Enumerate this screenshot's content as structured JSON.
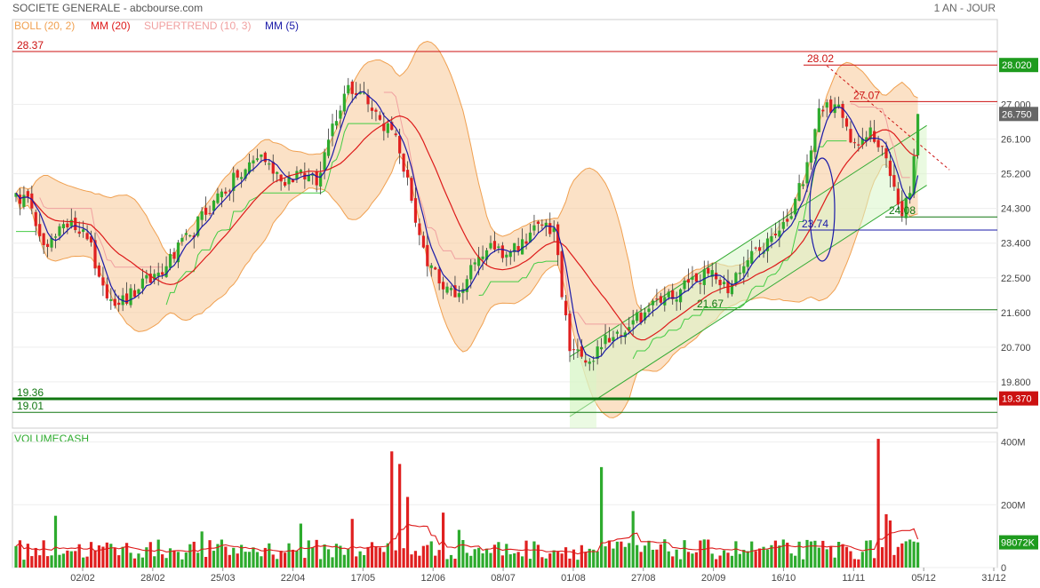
{
  "header": {
    "title": "SOCIETE GENERALE - abcbourse.com",
    "period": "1 AN - JOUR"
  },
  "legend": {
    "boll": "BOLL (20, 2)",
    "mm20": "MM (20)",
    "supertrend": "SUPERTREND (10, 3)",
    "mm5": "MM (5)",
    "volume": "VOLUMECASH"
  },
  "colors": {
    "up": "#2eab2e",
    "down": "#e02020",
    "boll_fill": "#f7c898",
    "boll_line": "#f0a050",
    "mm20": "#dd1a1a",
    "mm5": "#1a1aa8",
    "supertrend_low": "#44cc44",
    "supertrend_high": "#f0a0a0",
    "channel": "#33aa33",
    "channel_fill": "#d8f5c8",
    "resistance": "#cc1111",
    "support": "#117711"
  },
  "chart_data": [
    {
      "type": "candlestick",
      "ylim": [
        18.6,
        29.2
      ],
      "y_ticks": [
        "19.800",
        "20.700",
        "21.600",
        "22.500",
        "23.400",
        "24.300",
        "25.200",
        "26.100",
        "27.000"
      ],
      "x_ticks": [
        "02/02",
        "28/02",
        "25/03",
        "22/04",
        "17/05",
        "12/06",
        "08/07",
        "01/08",
        "27/08",
        "20/09",
        "16/10",
        "11/11",
        "05/12",
        "31/12"
      ],
      "close_anchors": [
        [
          0,
          24.7
        ],
        [
          4,
          24.3
        ],
        [
          8,
          23.3
        ],
        [
          14,
          24.0
        ],
        [
          18,
          23.5
        ],
        [
          22,
          22.3
        ],
        [
          26,
          21.8
        ],
        [
          31,
          22.2
        ],
        [
          38,
          22.8
        ],
        [
          44,
          23.6
        ],
        [
          50,
          24.5
        ],
        [
          56,
          25.1
        ],
        [
          62,
          25.7
        ],
        [
          67,
          25.0
        ],
        [
          72,
          25.3
        ],
        [
          76,
          24.9
        ],
        [
          80,
          26.5
        ],
        [
          84,
          27.5
        ],
        [
          88,
          27.3
        ],
        [
          92,
          26.6
        ],
        [
          96,
          26.2
        ],
        [
          100,
          24.5
        ],
        [
          104,
          22.8
        ],
        [
          108,
          22.2
        ],
        [
          112,
          22.1
        ],
        [
          116,
          22.9
        ],
        [
          120,
          23.4
        ],
        [
          124,
          23.1
        ],
        [
          128,
          23.5
        ],
        [
          132,
          23.9
        ],
        [
          136,
          23.8
        ],
        [
          140,
          20.6
        ],
        [
          144,
          20.3
        ],
        [
          148,
          20.7
        ],
        [
          152,
          21.1
        ],
        [
          156,
          21.4
        ],
        [
          160,
          21.7
        ],
        [
          164,
          22.0
        ],
        [
          168,
          22.2
        ],
        [
          172,
          22.4
        ],
        [
          176,
          22.7
        ],
        [
          180,
          22.1
        ],
        [
          184,
          22.8
        ],
        [
          188,
          23.2
        ],
        [
          192,
          23.6
        ],
        [
          196,
          24.1
        ],
        [
          200,
          25.5
        ],
        [
          203,
          26.9
        ],
        [
          207,
          27.0
        ],
        [
          212,
          26.0
        ],
        [
          216,
          26.4
        ],
        [
          220,
          25.6
        ],
        [
          224,
          24.1
        ],
        [
          226,
          24.7
        ],
        [
          228,
          26.75
        ]
      ],
      "series_names": [
        "BOLL (20, 2)",
        "MM (20)",
        "SUPERTREND (10, 3)",
        "MM (5)"
      ],
      "annotations": [
        {
          "text": "28.37",
          "y": 28.37,
          "kind": "resistance"
        },
        {
          "text": "28.02",
          "y": 28.02,
          "kind": "resistance"
        },
        {
          "text": "27.07",
          "y": 27.07,
          "kind": "resistance"
        },
        {
          "text": "24.08",
          "y": 24.08,
          "kind": "support"
        },
        {
          "text": "23.74",
          "y": 23.74,
          "kind": "mm5"
        },
        {
          "text": "21.67",
          "y": 21.67,
          "kind": "support"
        },
        {
          "text": "19.36",
          "y": 19.36,
          "kind": "support"
        },
        {
          "text": "19.01",
          "y": 19.01,
          "kind": "support"
        }
      ],
      "axis_boxes": [
        {
          "text": "28.020",
          "y": 28.02,
          "color": "#1e9b1e"
        },
        {
          "text": "26.750",
          "y": 26.75,
          "color": "#666666"
        },
        {
          "text": "19.370",
          "y": 19.37,
          "color": "#cc1111"
        }
      ],
      "trend_channel": {
        "start_index": 140,
        "end_index": 228,
        "lower_start": 18.9,
        "lower_end": 24.9,
        "width": 1.55
      },
      "trend_line": {
        "start_index": 205,
        "start_value": 28.0,
        "end_index": 236,
        "end_value": 25.3
      }
    },
    {
      "type": "bar",
      "title": "VOLUMECASH",
      "ylim": [
        0,
        430
      ],
      "y_ticks": [
        "400M",
        "200M",
        "0"
      ],
      "last_value_box": "98072K",
      "spikes": [
        [
          10,
          165
        ],
        [
          47,
          115
        ],
        [
          72,
          140
        ],
        [
          85,
          155
        ],
        [
          95,
          370
        ],
        [
          97,
          330
        ],
        [
          99,
          225
        ],
        [
          108,
          175
        ],
        [
          112,
          120
        ],
        [
          148,
          320
        ],
        [
          156,
          180
        ],
        [
          218,
          410
        ],
        [
          220,
          170
        ],
        [
          221,
          150
        ]
      ]
    }
  ]
}
